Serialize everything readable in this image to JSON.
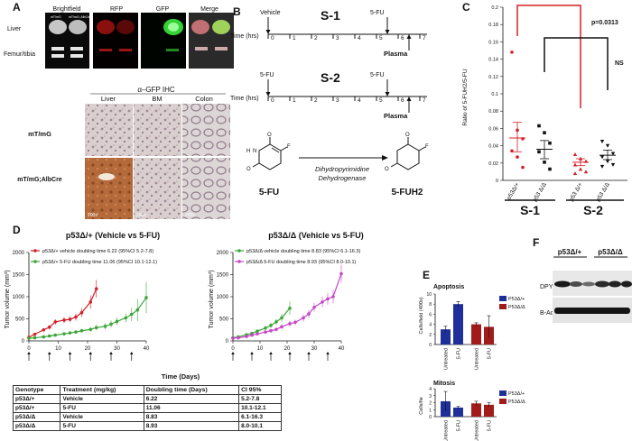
{
  "panels": {
    "A": {
      "label": "A",
      "imaging_headers": [
        "Brightfield",
        "RFP",
        "GFP",
        "Merge"
      ],
      "tile_labels": [
        "mT/mG",
        "mT/mG; AlbCre"
      ],
      "row_labels": [
        "Liver",
        "Femur/tibia"
      ],
      "ihc_title": "α–GFP IHC",
      "ihc_cols": [
        "Liver",
        "BM",
        "Colon"
      ],
      "ihc_rows": [
        "mT/mG",
        "mT/mG;AlbCre"
      ],
      "scale_label": "200x"
    },
    "B": {
      "label": "B",
      "schedule1": {
        "name": "S-1",
        "start_label": "Vehicle",
        "dose_label": "5-FU",
        "end_label": "Plasma",
        "axis_label": "Time (hrs)",
        "ticks": [
          "0",
          "1",
          "2",
          "3",
          "4",
          "5",
          "6",
          "7"
        ]
      },
      "schedule2": {
        "name": "S-2",
        "start_label": "5-FU",
        "dose_label": "5-FU",
        "end_label": "Plasma",
        "axis_label": "Time (hrs)",
        "ticks": [
          "0",
          "1",
          "2",
          "3",
          "4",
          "5",
          "6",
          "7"
        ]
      },
      "reaction": {
        "substrate": "5-FU",
        "product": "5-FUH2",
        "enzyme_line1": "Dihydropyrimidine",
        "enzyme_line2": "Dehydrogenase",
        "atom_o": "O",
        "atom_n": "N",
        "atom_h": "H",
        "atom_f": "F"
      }
    },
    "C": {
      "label": "C",
      "pvalue": "p=0.0313",
      "ns_label": "NS",
      "group_labels": [
        "S-1",
        "S-2"
      ]
    },
    "D": {
      "label": "D",
      "left_title": "p53Δ/+ (Vehicle vs 5-FU)",
      "right_title": "p53Δ/Δ (Vehicle vs 5-FU)",
      "xlabel": "Days",
      "xlabel_full": "Time (Days)",
      "ylabel": "Tumor volume (mm³)"
    },
    "E": {
      "label": "E",
      "legend": [
        "P53Δ/+",
        "P53Δ/Δ"
      ]
    },
    "F": {
      "label": "F",
      "lane_groups": [
        "p53Δ/+",
        "p53Δ/Δ"
      ],
      "bands": [
        "DPYD",
        "B-Actin"
      ]
    }
  },
  "table": {
    "headers": [
      "Genotype",
      "Treatment (mg/kg)",
      "Doubling time (Days)",
      "CI 95%"
    ],
    "rows": [
      [
        "p53Δ/+",
        "Vehicle",
        "6.22",
        "5.2-7.8"
      ],
      [
        "p53Δ/+",
        "5-FU",
        "11.06",
        "10.1-12.1"
      ],
      [
        "p53Δ/Δ",
        "Vehicle",
        "8.83",
        "6.1-16.3"
      ],
      [
        "p53Δ/Δ",
        "5-FU",
        "8.93",
        "8.0-10.1"
      ]
    ]
  },
  "colors": {
    "red": "#d32027",
    "green": "#3aa63a",
    "blue": "#1f2f9a",
    "darkred": "#a11b1b",
    "magenta": "#c746c7"
  },
  "chart_data": [
    {
      "type": "scatter",
      "id": "C",
      "title": "",
      "xlabel": "",
      "ylabel": "Ratio of 5-FUH2/5-FU",
      "ylim": [
        0,
        0.2
      ],
      "yticks": [
        0,
        0.02,
        0.04,
        0.06,
        0.08,
        0.1,
        0.12,
        0.14,
        0.16,
        0.18,
        0.2
      ],
      "categories": [
        "p53Δ/+",
        "p53 Δ/Δ",
        "p53 Δ/+",
        "p53 Δ/Δ"
      ],
      "series": [
        {
          "points": [
            0.148,
            0.058,
            0.048,
            0.034,
            0.027,
            0.015
          ],
          "mean": 0.049,
          "sem": [
            0.033,
            0.067
          ],
          "color": "#d32027",
          "marker": "circle"
        },
        {
          "points": [
            0.063,
            0.055,
            0.043,
            0.033,
            0.021,
            0.013
          ],
          "mean": 0.036,
          "sem": [
            0.025,
            0.046
          ],
          "color": "#111111",
          "marker": "square"
        },
        {
          "points": [
            0.03,
            0.025,
            0.022,
            0.018,
            0.013,
            0.01,
            0.008
          ],
          "mean": 0.021,
          "sem": [
            0.017,
            0.025
          ],
          "color": "#d32027",
          "marker": "triangle"
        },
        {
          "points": [
            0.045,
            0.04,
            0.031,
            0.027,
            0.022,
            0.018,
            0.016
          ],
          "mean": 0.029,
          "sem": [
            0.024,
            0.035
          ],
          "color": "#111111",
          "marker": "triangle-down"
        }
      ]
    },
    {
      "type": "line",
      "id": "D-left",
      "title": "p53Δ/+ (Vehicle vs 5-FU)",
      "xlabel": "Time (Days)",
      "ylabel": "Tumor volume (mm³)",
      "xlim": [
        0,
        40
      ],
      "ylim": [
        0,
        2000
      ],
      "xticks": [
        0,
        10,
        20,
        30,
        40
      ],
      "yticks": [
        0,
        500,
        1000,
        1500,
        2000
      ],
      "series": [
        {
          "name": "p53Δ/+ vehicle doubling time 6.22 (95%CI 5.2-7.8)",
          "color": "#d32027",
          "x": [
            0,
            2,
            5,
            7,
            9,
            12,
            14,
            16,
            18,
            21,
            23
          ],
          "y": [
            80,
            150,
            250,
            310,
            430,
            470,
            490,
            540,
            640,
            880,
            1180
          ],
          "err": [
            20,
            30,
            40,
            50,
            60,
            70,
            70,
            80,
            100,
            150,
            200
          ]
        },
        {
          "name": "p53Δ/+ 5-FU doubling time 11.06 (95%CI 10.1-12.1)",
          "color": "#3aa63a",
          "x": [
            0,
            2,
            5,
            7,
            9,
            12,
            14,
            16,
            18,
            21,
            23,
            26,
            28,
            30,
            33,
            35,
            37,
            40
          ],
          "y": [
            60,
            70,
            90,
            110,
            130,
            160,
            180,
            200,
            230,
            260,
            300,
            330,
            380,
            440,
            520,
            600,
            700,
            980
          ],
          "err": [
            10,
            10,
            20,
            20,
            20,
            30,
            30,
            40,
            40,
            50,
            60,
            70,
            80,
            90,
            100,
            150,
            250,
            350
          ]
        }
      ]
    },
    {
      "type": "line",
      "id": "D-right",
      "title": "p53Δ/Δ (Vehicle vs 5-FU)",
      "xlabel": "Time (Days)",
      "ylabel": "Tumor volume (mm³)",
      "xlim": [
        0,
        40
      ],
      "ylim": [
        0,
        2000
      ],
      "xticks": [
        0,
        10,
        20,
        30,
        40
      ],
      "yticks": [
        0,
        500,
        1000,
        1500,
        2000
      ],
      "series": [
        {
          "name": "p53Δ/Δ vehicle doubling time 8.83 (95%CI 6.1-16.3)",
          "color": "#3aa63a",
          "x": [
            0,
            2,
            5,
            7,
            9,
            12,
            14,
            16,
            18,
            21
          ],
          "y": [
            70,
            90,
            140,
            170,
            220,
            290,
            350,
            430,
            520,
            740
          ],
          "err": [
            15,
            20,
            25,
            30,
            40,
            50,
            60,
            70,
            90,
            150
          ]
        },
        {
          "name": "p53Δ/Δ 5-FU doubling time 8.93 (95%CI 8.0-10.1)",
          "color": "#c746c7",
          "x": [
            0,
            2,
            5,
            7,
            9,
            12,
            14,
            16,
            18,
            21,
            23,
            26,
            28,
            30,
            33,
            35,
            37,
            40
          ],
          "y": [
            60,
            70,
            100,
            130,
            160,
            200,
            230,
            260,
            320,
            390,
            420,
            520,
            610,
            760,
            880,
            950,
            1000,
            1520
          ],
          "err": [
            10,
            10,
            15,
            20,
            25,
            30,
            30,
            40,
            50,
            60,
            60,
            80,
            90,
            100,
            120,
            130,
            150,
            200
          ]
        }
      ]
    },
    {
      "type": "bar",
      "id": "E-apoptosis",
      "title": "Apoptosis",
      "ylabel": "Cells/field (400x)",
      "ylim": [
        0,
        10
      ],
      "yticks": [
        0,
        2,
        4,
        6,
        8,
        10
      ],
      "categories": [
        "Untreated",
        "5-FU",
        "Untreated",
        "5-FU"
      ],
      "values": [
        3,
        8,
        4,
        3.5
      ],
      "errors": [
        0.6,
        0.5,
        0.3,
        2.2
      ],
      "colors": [
        "#1f2f9a",
        "#1f2f9a",
        "#a11b1b",
        "#a11b1b"
      ]
    },
    {
      "type": "bar",
      "id": "E-mitosis",
      "title": "Mitosis",
      "ylabel": "Cells/fie",
      "ylim": [
        0,
        4
      ],
      "yticks": [
        0,
        1,
        2,
        3,
        4
      ],
      "categories": [
        "Untreated",
        "5-FU",
        "Untreated",
        "5-FU"
      ],
      "values": [
        2.2,
        1.3,
        1.9,
        1.7
      ],
      "errors": [
        1.4,
        0.15,
        0.3,
        0.3
      ],
      "colors": [
        "#1f2f9a",
        "#1f2f9a",
        "#a11b1b",
        "#a11b1b"
      ]
    }
  ]
}
